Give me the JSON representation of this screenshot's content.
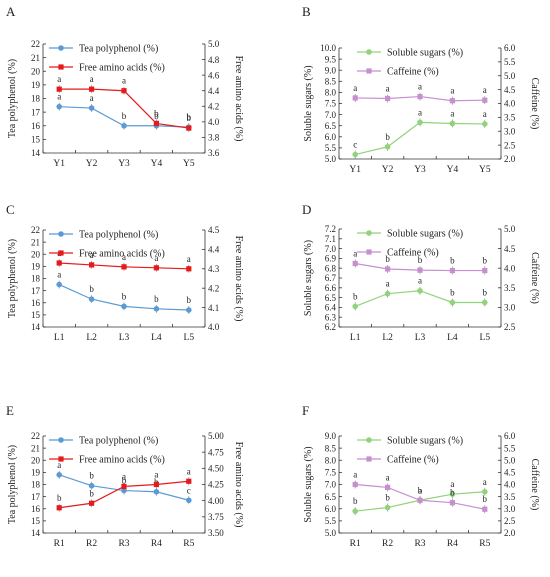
{
  "chart_data": [
    {
      "panel_label": "A",
      "type": "line",
      "categories": [
        "Y1",
        "Y2",
        "Y3",
        "Y4",
        "Y5"
      ],
      "ylabel": "Tea polyphenol (%)",
      "y2label": "Free amino acids (%)",
      "ylim": [
        14,
        22
      ],
      "yticks": [
        "14",
        "15",
        "16",
        "17",
        "18",
        "19",
        "20",
        "21",
        "22"
      ],
      "y2lim": [
        3.6,
        5.0
      ],
      "y2ticks": [
        "3.6",
        "3.8",
        "4.0",
        "4.2",
        "4.4",
        "4.6",
        "4.8",
        "5.0"
      ],
      "legend_position": "top-left",
      "series": [
        {
          "name": "Tea polyphenol (%)",
          "axis": "left",
          "color": "#5b9bd5",
          "marker": "circle",
          "values": [
            17.4,
            17.3,
            16.0,
            16.0,
            15.9
          ],
          "labels": [
            "a",
            "a",
            "b",
            "b",
            "b"
          ]
        },
        {
          "name": "Free amino acids (%)",
          "axis": "right",
          "color": "#e41a1c",
          "marker": "square",
          "values": [
            4.42,
            4.42,
            4.4,
            3.98,
            3.92
          ],
          "labels": [
            "a",
            "a",
            "a",
            "b",
            "b"
          ]
        }
      ]
    },
    {
      "panel_label": "B",
      "type": "line",
      "categories": [
        "Y1",
        "Y2",
        "Y3",
        "Y4",
        "Y5"
      ],
      "ylabel": "Soluble sugars (%)",
      "y2label": "Caffeine (%)",
      "ylim": [
        5.0,
        10.0
      ],
      "yticks": [
        "5.0",
        "5.5",
        "6.0",
        "6.5",
        "7.0",
        "7.5",
        "8.0",
        "8.5",
        "9.0",
        "9.5",
        "10.0"
      ],
      "y2lim": [
        2.0,
        6.0
      ],
      "y2ticks": [
        "2.0",
        "2.5",
        "3.0",
        "3.5",
        "4.0",
        "4.5",
        "5.0",
        "5.5",
        "6.0"
      ],
      "legend_position": "top-right",
      "series": [
        {
          "name": "Soluble sugars (%)",
          "axis": "left",
          "color": "#90d37a",
          "marker": "circle",
          "values": [
            5.2,
            5.55,
            6.65,
            6.6,
            6.58
          ],
          "labels": [
            "c",
            "b",
            "a",
            "a",
            "a"
          ]
        },
        {
          "name": "Caffeine (%)",
          "axis": "right",
          "color": "#c78fd0",
          "marker": "square",
          "values": [
            4.2,
            4.18,
            4.25,
            4.1,
            4.12
          ],
          "labels": [
            "a",
            "a",
            "a",
            "a",
            "a"
          ]
        }
      ]
    },
    {
      "panel_label": "C",
      "type": "line",
      "categories": [
        "L1",
        "L2",
        "L3",
        "L4",
        "L5"
      ],
      "ylabel": "Tea polyphenol (%)",
      "y2label": "Free amino acids (%)",
      "ylim": [
        14,
        22
      ],
      "yticks": [
        "14",
        "15",
        "16",
        "17",
        "18",
        "19",
        "20",
        "21",
        "22"
      ],
      "y2lim": [
        4.0,
        4.5
      ],
      "y2ticks": [
        "4.0",
        "4.1",
        "4.2",
        "4.3",
        "4.4",
        "4.5"
      ],
      "legend_position": "top-left",
      "series": [
        {
          "name": "Tea polyphenol (%)",
          "axis": "left",
          "color": "#5b9bd5",
          "marker": "circle",
          "values": [
            17.5,
            16.3,
            15.7,
            15.5,
            15.4
          ],
          "labels": [
            "a",
            "b",
            "b",
            "b",
            "b"
          ]
        },
        {
          "name": "Free amino acids (%)",
          "axis": "right",
          "color": "#e41a1c",
          "marker": "square",
          "values": [
            4.33,
            4.32,
            4.31,
            4.305,
            4.3
          ],
          "labels": [
            "a",
            "a",
            "a",
            "a",
            "a"
          ]
        }
      ]
    },
    {
      "panel_label": "D",
      "type": "line",
      "categories": [
        "L1",
        "L2",
        "L3",
        "L4",
        "L5"
      ],
      "ylabel": "Soluble sugars (%)",
      "y2label": "Caffeine (%)",
      "ylim": [
        6.2,
        7.2
      ],
      "yticks": [
        "6.2",
        "6.3",
        "6.4",
        "6.5",
        "6.6",
        "6.7",
        "6.8",
        "6.9",
        "7.0",
        "7.1",
        "7.2"
      ],
      "y2lim": [
        2.5,
        5.0
      ],
      "y2ticks": [
        "2.5",
        "3.0",
        "3.5",
        "4.0",
        "4.5",
        "5.0"
      ],
      "legend_position": "top-right",
      "series": [
        {
          "name": "Soluble sugars (%)",
          "axis": "left",
          "color": "#90d37a",
          "marker": "circle",
          "values": [
            6.41,
            6.54,
            6.57,
            6.45,
            6.45
          ],
          "labels": [
            "b",
            "a",
            "a",
            "b",
            "b"
          ]
        },
        {
          "name": "Caffeine (%)",
          "axis": "right",
          "color": "#c78fd0",
          "marker": "square",
          "values": [
            4.12,
            3.98,
            3.95,
            3.94,
            3.94
          ],
          "labels": [
            "a",
            "b",
            "b",
            "b",
            "b"
          ]
        }
      ]
    },
    {
      "panel_label": "E",
      "type": "line",
      "categories": [
        "R1",
        "R2",
        "R3",
        "R4",
        "R5"
      ],
      "ylabel": "Tea polyphenol (%)",
      "y2label": "Free amino acids (%)",
      "ylim": [
        14,
        22
      ],
      "yticks": [
        "14",
        "15",
        "16",
        "17",
        "18",
        "19",
        "20",
        "21",
        "22"
      ],
      "y2lim": [
        3.5,
        5.0
      ],
      "y2ticks": [
        "3.50",
        "3.75",
        "4.00",
        "4.25",
        "4.50",
        "4.75",
        "5.00"
      ],
      "legend_position": "top-left",
      "series": [
        {
          "name": "Tea polyphenol (%)",
          "axis": "left",
          "color": "#5b9bd5",
          "marker": "circle",
          "values": [
            18.8,
            17.9,
            17.5,
            17.4,
            16.7
          ],
          "labels": [
            "a",
            "b",
            "b",
            "b",
            "c"
          ]
        },
        {
          "name": "Free amino acids (%)",
          "axis": "right",
          "color": "#e41a1c",
          "marker": "square",
          "values": [
            3.89,
            3.96,
            4.22,
            4.25,
            4.3
          ],
          "labels": [
            "b",
            "b",
            "a",
            "a",
            "a"
          ]
        }
      ]
    },
    {
      "panel_label": "F",
      "type": "line",
      "categories": [
        "R1",
        "R2",
        "R3",
        "R4",
        "R5"
      ],
      "ylabel": "Soluble sugars (%)",
      "y2label": "Caffeine (%)",
      "ylim": [
        5.0,
        9.0
      ],
      "yticks": [
        "5.0",
        "5.5",
        "6.0",
        "6.5",
        "7.0",
        "7.5",
        "8.0",
        "8.5",
        "9.0"
      ],
      "y2lim": [
        2.0,
        6.0
      ],
      "y2ticks": [
        "2.0",
        "2.5",
        "3.0",
        "3.5",
        "4.0",
        "4.5",
        "5.0",
        "5.5",
        "6.0"
      ],
      "legend_position": "top-right",
      "series": [
        {
          "name": "Soluble sugars (%)",
          "axis": "left",
          "color": "#90d37a",
          "marker": "circle",
          "values": [
            5.9,
            6.05,
            6.35,
            6.6,
            6.7
          ],
          "labels": [
            "b",
            "b",
            "a",
            "a",
            "a"
          ]
        },
        {
          "name": "Caffeine (%)",
          "axis": "right",
          "color": "#c78fd0",
          "marker": "square",
          "values": [
            4.0,
            3.88,
            3.35,
            3.25,
            2.98
          ],
          "labels": [
            "a",
            "a",
            "b",
            "b",
            "b"
          ]
        }
      ]
    }
  ]
}
